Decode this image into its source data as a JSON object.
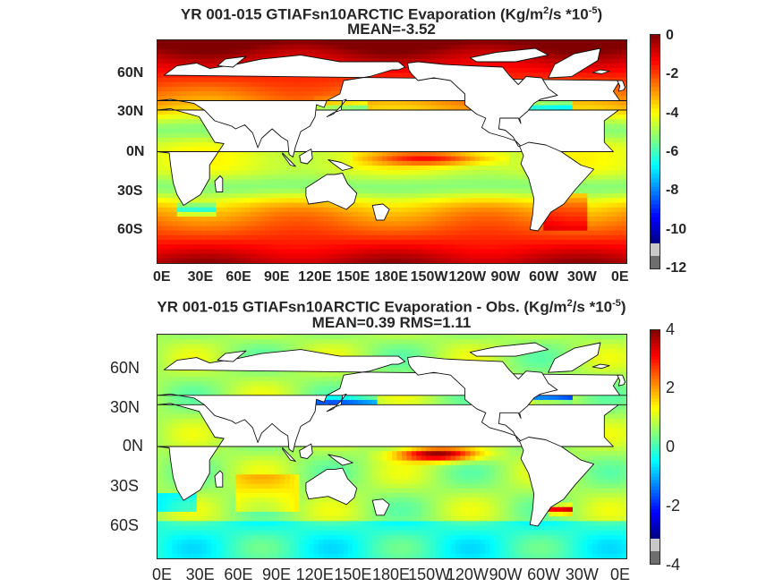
{
  "chart_data": [
    {
      "type": "heatmap",
      "title_main": "YR 001-015 GTIAFsn10ARCTIC  Evaporation (Kg/m",
      "title_sup1": "2",
      "title_mid": "/s *10",
      "title_sup2": "-5",
      "title_end": ")",
      "subtitle": "MEAN=-3.52",
      "y_ticks": [
        "60N",
        "30N",
        "0N",
        "30S",
        "60S"
      ],
      "x_ticks": [
        "0E",
        "30E",
        "60E",
        "90E",
        "120E",
        "150E",
        "180E",
        "150W",
        "120W",
        "90W",
        "60W",
        "30W",
        "0E"
      ],
      "colorbar_ticks": [
        "0",
        "-2",
        "-4",
        "-6",
        "-8",
        "-10",
        "-12"
      ],
      "colorbar_range": [
        -12,
        0
      ],
      "colormap": "jet",
      "colors": {
        "land": "#ffffff",
        "missing": "#c8c8c8",
        "below": "#6e6e6e"
      },
      "field_baseline": -4.5
    },
    {
      "type": "heatmap",
      "title_main": "YR 001-015 GTIAFsn10ARCTIC Evaporation - Obs. (Kg/m",
      "title_sup1": "2",
      "title_mid": "/s *10",
      "title_sup2": "-5",
      "title_end": ")",
      "subtitle": "MEAN=0.39   RMS=1.11",
      "y_ticks": [
        "60N",
        "30N",
        "0N",
        "30S",
        "60S"
      ],
      "x_ticks": [
        "0E",
        "30E",
        "60E",
        "90E",
        "120E",
        "150E",
        "180E",
        "150W",
        "120W",
        "90W",
        "60W",
        "30W",
        "0E"
      ],
      "colorbar_ticks": [
        "4",
        "2",
        "0",
        "-2",
        "-4"
      ],
      "colorbar_range": [
        -4,
        4
      ],
      "colormap": "jet",
      "colors": {
        "land": "#ffffff",
        "missing": "#c8c8c8",
        "below": "#6e6e6e"
      },
      "field_baseline": 0.39
    }
  ]
}
